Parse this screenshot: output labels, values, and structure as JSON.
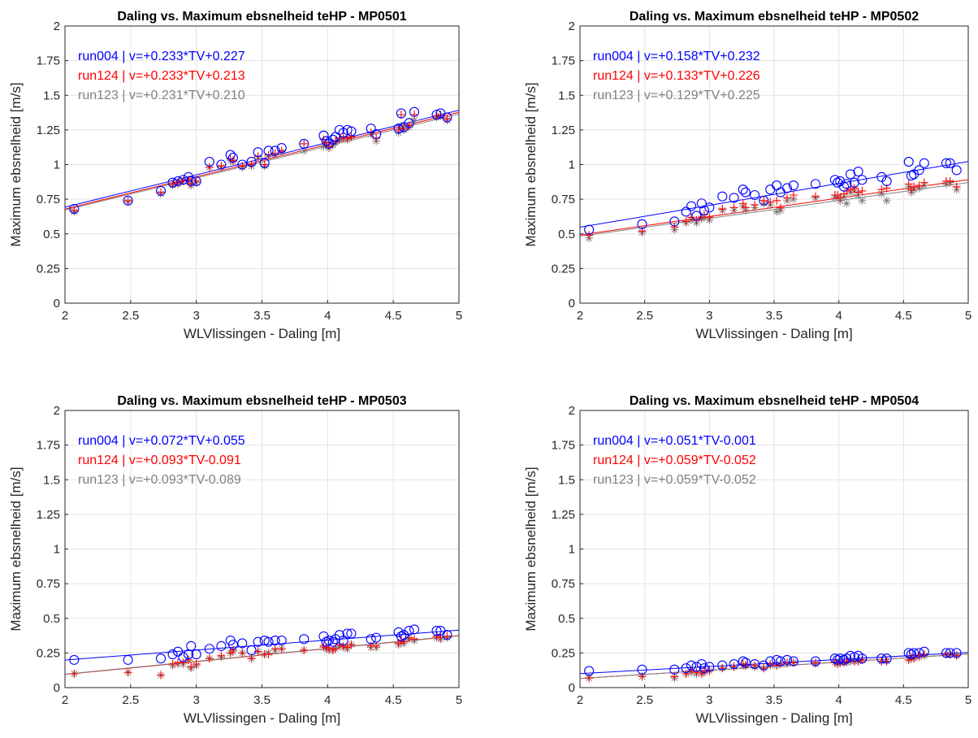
{
  "figure": {
    "marker_colors": {
      "run004": "#0000ff",
      "run124": "#ff0000",
      "run123": "#808080"
    }
  },
  "chart_data": [
    {
      "type": "scatter",
      "title": "Daling vs. Maximum ebsnelheid teHP - MP0501",
      "xlabel": "WLVlissingen - Daling [m]",
      "ylabel": "Maximum ebsnelheid [m/s]",
      "xlim": [
        2,
        5
      ],
      "ylim": [
        0,
        2
      ],
      "xticks": [
        "2",
        "2.5",
        "3",
        "3.5",
        "4",
        "4.5",
        "5"
      ],
      "yticks": [
        "0",
        "0.25",
        "0.5",
        "0.75",
        "1",
        "1.25",
        "1.5",
        "1.75",
        "2"
      ],
      "grid": true,
      "legend_position": "top-left",
      "x": [
        2.07,
        2.48,
        2.73,
        2.82,
        2.86,
        2.9,
        2.94,
        2.96,
        3.0,
        3.1,
        3.19,
        3.26,
        3.28,
        3.35,
        3.42,
        3.47,
        3.52,
        3.55,
        3.6,
        3.65,
        3.82,
        3.97,
        3.99,
        4.01,
        4.04,
        4.06,
        4.09,
        4.12,
        4.15,
        4.18,
        4.33,
        4.37,
        4.54,
        4.56,
        4.58,
        4.62,
        4.66,
        4.83,
        4.86,
        4.91
      ],
      "series": [
        {
          "name": "run004 | v=+0.233*TV+0.227",
          "marker": "circle",
          "fit": [
            0.233,
            0.227
          ],
          "values": [
            0.68,
            0.74,
            0.81,
            0.87,
            0.88,
            0.89,
            0.91,
            0.88,
            0.88,
            1.02,
            1.0,
            1.07,
            1.05,
            1.0,
            1.02,
            1.09,
            1.01,
            1.1,
            1.1,
            1.12,
            1.15,
            1.21,
            1.17,
            1.15,
            1.18,
            1.2,
            1.25,
            1.23,
            1.25,
            1.24,
            1.26,
            1.22,
            1.26,
            1.37,
            1.27,
            1.3,
            1.38,
            1.36,
            1.37,
            1.34
          ]
        },
        {
          "name": "run124 | v=+0.233*TV+0.213",
          "marker": "plus",
          "fit": [
            0.233,
            0.213
          ],
          "values": [
            0.67,
            0.74,
            0.8,
            0.86,
            0.87,
            0.88,
            0.89,
            0.86,
            0.88,
            0.98,
            0.99,
            1.04,
            1.03,
            0.99,
            1.0,
            1.06,
            1.0,
            1.07,
            1.08,
            1.1,
            1.15,
            1.18,
            1.16,
            1.13,
            1.15,
            1.17,
            1.19,
            1.2,
            1.19,
            1.2,
            1.23,
            1.19,
            1.25,
            1.36,
            1.26,
            1.28,
            1.36,
            1.35,
            1.36,
            1.33
          ]
        },
        {
          "name": "run123 | v=+0.231*TV+0.210",
          "marker": "asterisk",
          "fit": [
            0.231,
            0.21
          ],
          "values": [
            0.66,
            0.73,
            0.79,
            0.85,
            0.86,
            0.88,
            0.88,
            0.85,
            0.87,
            0.98,
            0.98,
            1.03,
            1.02,
            0.98,
            0.99,
            1.05,
            0.99,
            1.06,
            1.07,
            1.09,
            1.1,
            1.13,
            1.15,
            1.12,
            1.14,
            1.16,
            1.18,
            1.19,
            1.18,
            1.2,
            1.22,
            1.17,
            1.23,
            1.28,
            1.25,
            1.27,
            1.32,
            1.34,
            1.35,
            1.32
          ]
        }
      ]
    },
    {
      "type": "scatter",
      "title": "Daling vs. Maximum ebsnelheid teHP - MP0502",
      "xlabel": "WLVlissingen - Daling [m]",
      "ylabel": "Maximum ebsnelheid [m/s]",
      "xlim": [
        2,
        5
      ],
      "ylim": [
        0,
        2
      ],
      "xticks": [
        "2",
        "2.5",
        "3",
        "3.5",
        "4",
        "4.5",
        "5"
      ],
      "yticks": [
        "0",
        "0.25",
        "0.5",
        "0.75",
        "1",
        "1.25",
        "1.5",
        "1.75",
        "2"
      ],
      "grid": true,
      "legend_position": "top-left",
      "x": [
        2.07,
        2.48,
        2.73,
        2.82,
        2.86,
        2.9,
        2.94,
        2.96,
        3.0,
        3.1,
        3.19,
        3.26,
        3.28,
        3.35,
        3.42,
        3.47,
        3.52,
        3.55,
        3.6,
        3.65,
        3.82,
        3.97,
        3.99,
        4.01,
        4.04,
        4.06,
        4.09,
        4.12,
        4.15,
        4.18,
        4.33,
        4.37,
        4.54,
        4.56,
        4.58,
        4.62,
        4.66,
        4.83,
        4.86,
        4.91
      ],
      "series": [
        {
          "name": "run004 | v=+0.158*TV+0.232",
          "marker": "circle",
          "fit": [
            0.158,
            0.232
          ],
          "values": [
            0.53,
            0.57,
            0.59,
            0.66,
            0.7,
            0.63,
            0.72,
            0.67,
            0.69,
            0.77,
            0.76,
            0.82,
            0.8,
            0.78,
            0.74,
            0.82,
            0.85,
            0.8,
            0.83,
            0.85,
            0.86,
            0.89,
            0.87,
            0.88,
            0.84,
            0.86,
            0.93,
            0.87,
            0.95,
            0.89,
            0.91,
            0.88,
            1.02,
            0.92,
            0.93,
            0.96,
            1.01,
            1.01,
            1.01,
            0.96
          ]
        },
        {
          "name": "run124 | v=+0.133*TV+0.226",
          "marker": "plus",
          "fit": [
            0.133,
            0.226
          ],
          "values": [
            0.49,
            0.52,
            0.55,
            0.59,
            0.62,
            0.6,
            0.62,
            0.64,
            0.62,
            0.68,
            0.69,
            0.72,
            0.69,
            0.71,
            0.74,
            0.73,
            0.74,
            0.69,
            0.76,
            0.78,
            0.77,
            0.78,
            0.78,
            0.76,
            0.79,
            0.81,
            0.82,
            0.83,
            0.8,
            0.81,
            0.82,
            0.83,
            0.86,
            0.82,
            0.84,
            0.85,
            0.87,
            0.88,
            0.88,
            0.84
          ]
        },
        {
          "name": "run123 | v=+0.129*TV+0.225",
          "marker": "asterisk",
          "fit": [
            0.129,
            0.225
          ],
          "values": [
            0.47,
            0.51,
            0.53,
            0.58,
            0.6,
            0.58,
            0.61,
            0.62,
            0.6,
            0.67,
            0.67,
            0.7,
            0.67,
            0.69,
            0.72,
            0.71,
            0.66,
            0.67,
            0.74,
            0.75,
            0.76,
            0.76,
            0.77,
            0.74,
            0.77,
            0.72,
            0.8,
            0.81,
            0.78,
            0.74,
            0.79,
            0.74,
            0.84,
            0.8,
            0.82,
            0.83,
            0.85,
            0.86,
            0.87,
            0.82
          ]
        }
      ]
    },
    {
      "type": "scatter",
      "title": "Daling vs. Maximum ebsnelheid teHP - MP0503",
      "xlabel": "WLVlissingen - Daling [m]",
      "ylabel": "Maximum ebsnelheid [m/s]",
      "xlim": [
        2,
        5
      ],
      "ylim": [
        0,
        2
      ],
      "xticks": [
        "2",
        "2.5",
        "3",
        "3.5",
        "4",
        "4.5",
        "5"
      ],
      "yticks": [
        "0",
        "0.25",
        "0.5",
        "0.75",
        "1",
        "1.25",
        "1.5",
        "1.75",
        "2"
      ],
      "grid": true,
      "legend_position": "top-left",
      "x": [
        2.07,
        2.48,
        2.73,
        2.82,
        2.86,
        2.9,
        2.94,
        2.96,
        3.0,
        3.1,
        3.19,
        3.26,
        3.28,
        3.35,
        3.42,
        3.47,
        3.52,
        3.55,
        3.6,
        3.65,
        3.82,
        3.97,
        3.99,
        4.01,
        4.04,
        4.06,
        4.09,
        4.12,
        4.15,
        4.18,
        4.33,
        4.37,
        4.54,
        4.56,
        4.58,
        4.62,
        4.66,
        4.83,
        4.86,
        4.91
      ],
      "series": [
        {
          "name": "run004 | v=+0.072*TV+0.055",
          "marker": "circle",
          "fit": [
            0.072,
            0.055
          ],
          "values": [
            0.2,
            0.2,
            0.21,
            0.24,
            0.26,
            0.22,
            0.24,
            0.3,
            0.24,
            0.28,
            0.3,
            0.34,
            0.31,
            0.32,
            0.27,
            0.33,
            0.34,
            0.33,
            0.34,
            0.34,
            0.35,
            0.37,
            0.33,
            0.34,
            0.33,
            0.35,
            0.38,
            0.34,
            0.39,
            0.39,
            0.35,
            0.36,
            0.4,
            0.37,
            0.38,
            0.41,
            0.42,
            0.41,
            0.41,
            0.38
          ]
        },
        {
          "name": "run124 | v=+0.093*TV-0.091",
          "marker": "plus",
          "fit": [
            0.093,
            -0.091
          ],
          "values": [
            0.1,
            0.11,
            0.09,
            0.17,
            0.18,
            0.18,
            0.2,
            0.15,
            0.17,
            0.21,
            0.23,
            0.25,
            0.27,
            0.25,
            0.21,
            0.26,
            0.24,
            0.24,
            0.28,
            0.28,
            0.27,
            0.3,
            0.29,
            0.28,
            0.27,
            0.28,
            0.31,
            0.3,
            0.29,
            0.31,
            0.3,
            0.3,
            0.32,
            0.34,
            0.33,
            0.36,
            0.35,
            0.37,
            0.36,
            0.37
          ]
        },
        {
          "name": "run123 | v=+0.093*TV-0.089",
          "marker": "asterisk",
          "fit": [
            0.093,
            -0.089
          ],
          "values": [
            0.1,
            0.11,
            0.09,
            0.16,
            0.17,
            0.17,
            0.2,
            0.14,
            0.16,
            0.21,
            0.22,
            0.25,
            0.26,
            0.25,
            0.21,
            0.26,
            0.24,
            0.25,
            0.27,
            0.28,
            0.27,
            0.29,
            0.28,
            0.27,
            0.27,
            0.28,
            0.3,
            0.29,
            0.28,
            0.31,
            0.29,
            0.29,
            0.31,
            0.33,
            0.32,
            0.35,
            0.34,
            0.36,
            0.35,
            0.36
          ]
        }
      ]
    },
    {
      "type": "scatter",
      "title": "Daling vs. Maximum ebsnelheid teHP - MP0504",
      "xlabel": "WLVlissingen - Daling [m]",
      "ylabel": "Maximum ebsnelheid [m/s]",
      "xlim": [
        2,
        5
      ],
      "ylim": [
        0,
        2
      ],
      "xticks": [
        "2",
        "2.5",
        "3",
        "3.5",
        "4",
        "4.5",
        "5"
      ],
      "yticks": [
        "0",
        "0.25",
        "0.5",
        "0.75",
        "1",
        "1.25",
        "1.5",
        "1.75",
        "2"
      ],
      "grid": true,
      "legend_position": "top-left",
      "x": [
        2.07,
        2.48,
        2.73,
        2.82,
        2.86,
        2.9,
        2.94,
        2.96,
        3.0,
        3.1,
        3.19,
        3.26,
        3.28,
        3.35,
        3.42,
        3.47,
        3.52,
        3.55,
        3.6,
        3.65,
        3.82,
        3.97,
        3.99,
        4.01,
        4.04,
        4.06,
        4.09,
        4.12,
        4.15,
        4.18,
        4.33,
        4.37,
        4.54,
        4.56,
        4.58,
        4.62,
        4.66,
        4.83,
        4.86,
        4.91
      ],
      "series": [
        {
          "name": "run004 | v=+0.051*TV-0.001",
          "marker": "circle",
          "fit": [
            0.051,
            -0.001
          ],
          "values": [
            0.12,
            0.13,
            0.13,
            0.14,
            0.16,
            0.15,
            0.17,
            0.14,
            0.15,
            0.16,
            0.17,
            0.19,
            0.18,
            0.17,
            0.16,
            0.19,
            0.2,
            0.19,
            0.2,
            0.19,
            0.19,
            0.21,
            0.2,
            0.21,
            0.2,
            0.21,
            0.23,
            0.22,
            0.23,
            0.21,
            0.21,
            0.21,
            0.25,
            0.24,
            0.25,
            0.25,
            0.26,
            0.25,
            0.25,
            0.25
          ]
        },
        {
          "name": "run124 | v=+0.059*TV-0.052",
          "marker": "plus",
          "fit": [
            0.059,
            -0.052
          ],
          "values": [
            0.07,
            0.08,
            0.08,
            0.1,
            0.12,
            0.11,
            0.1,
            0.12,
            0.12,
            0.14,
            0.15,
            0.17,
            0.16,
            0.16,
            0.14,
            0.17,
            0.16,
            0.17,
            0.18,
            0.18,
            0.18,
            0.18,
            0.17,
            0.18,
            0.18,
            0.19,
            0.2,
            0.19,
            0.19,
            0.2,
            0.19,
            0.19,
            0.2,
            0.22,
            0.21,
            0.23,
            0.24,
            0.24,
            0.24,
            0.23
          ]
        },
        {
          "name": "run123 | v=+0.059*TV-0.052",
          "marker": "asterisk",
          "fit": [
            0.059,
            -0.052
          ],
          "values": [
            0.07,
            0.08,
            0.07,
            0.1,
            0.11,
            0.1,
            0.1,
            0.11,
            0.12,
            0.14,
            0.15,
            0.16,
            0.16,
            0.15,
            0.14,
            0.16,
            0.16,
            0.17,
            0.17,
            0.18,
            0.17,
            0.18,
            0.17,
            0.18,
            0.18,
            0.18,
            0.19,
            0.19,
            0.19,
            0.2,
            0.19,
            0.19,
            0.2,
            0.21,
            0.21,
            0.22,
            0.23,
            0.24,
            0.24,
            0.23
          ]
        }
      ]
    }
  ]
}
